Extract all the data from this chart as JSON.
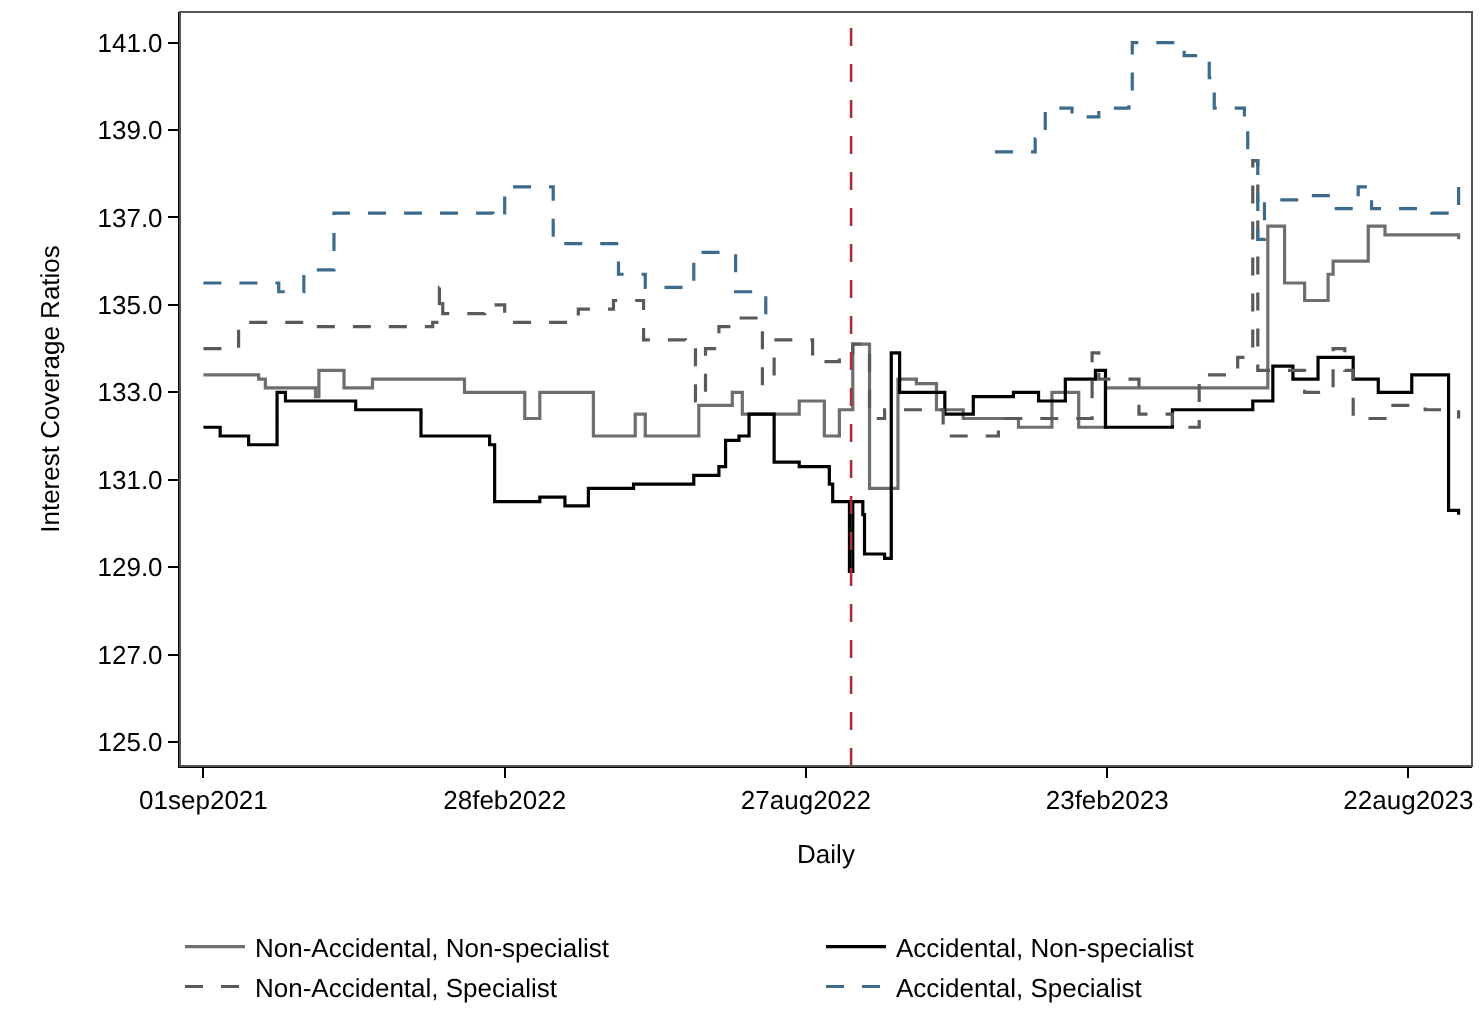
{
  "chart_data": {
    "type": "step",
    "xlabel": "Daily",
    "ylabel": "Interest Coverage Ratios",
    "xlim": [
      "2021-08-18",
      "2023-09-29"
    ],
    "xticks": [
      {
        "value": "2021-09-01",
        "label": "01sep2021"
      },
      {
        "value": "2022-02-28",
        "label": "28feb2022"
      },
      {
        "value": "2022-08-27",
        "label": "27aug2022"
      },
      {
        "value": "2023-02-23",
        "label": "23feb2023"
      },
      {
        "value": "2023-08-22",
        "label": "22aug2023"
      }
    ],
    "ylim": [
      124.45,
      141.7
    ],
    "yticks": [
      {
        "value": 125,
        "label": "125.0"
      },
      {
        "value": 127,
        "label": "127.0"
      },
      {
        "value": 129,
        "label": "129.0"
      },
      {
        "value": 131,
        "label": "131.0"
      },
      {
        "value": 133,
        "label": "133.0"
      },
      {
        "value": 135,
        "label": "135.0"
      },
      {
        "value": 137,
        "label": "137.0"
      },
      {
        "value": 139,
        "label": "139.0"
      },
      {
        "value": 141,
        "label": "141.0"
      }
    ],
    "legend": "bottom",
    "ref_lines": [
      {
        "axis": "x",
        "value": "2022-09-23",
        "color": "#a8323a",
        "line_style": "dashed"
      }
    ],
    "series": [
      {
        "name": "Non-Accidental, Non-specialist",
        "color": "#6e6e6e",
        "line_style": "solid",
        "x": [
          "2021-09-01",
          "2021-10-04",
          "2021-10-08",
          "2021-11-03",
          "2021-11-07",
          "2021-11-09",
          "2021-11-21",
          "2021-11-24",
          "2021-12-06",
          "2021-12-11",
          "2022-01-16",
          "2022-02-04",
          "2022-02-19",
          "2022-03-12",
          "2022-03-21",
          "2022-04-17",
          "2022-04-22",
          "2022-05-16",
          "2022-05-17",
          "2022-05-23",
          "2022-06-16",
          "2022-06-24",
          "2022-07-14",
          "2022-07-20",
          "2022-08-23",
          "2022-09-04",
          "2022-09-07",
          "2022-09-16",
          "2022-09-24",
          "2022-09-29",
          "2022-10-04",
          "2022-10-19",
          "2022-10-21",
          "2022-11-01",
          "2022-11-13",
          "2022-11-29",
          "2023-01-01",
          "2023-01-21",
          "2023-02-06",
          "2023-02-22",
          "2023-05-28",
          "2023-05-30",
          "2023-06-05",
          "2023-06-09",
          "2023-06-21",
          "2023-07-05",
          "2023-07-08",
          "2023-07-27",
          "2023-07-29",
          "2023-08-08",
          "2023-09-21"
        ],
        "values": [
          133.4,
          133.3,
          133.1,
          133.1,
          132.9,
          133.5,
          133.5,
          133.1,
          133.1,
          133.3,
          133.3,
          133.0,
          133.0,
          132.4,
          133.0,
          133.0,
          132.0,
          132.0,
          132.5,
          132.0,
          132.0,
          132.7,
          133.0,
          132.5,
          132.8,
          132.8,
          132.0,
          132.6,
          134.1,
          134.1,
          130.8,
          130.8,
          133.3,
          133.2,
          132.6,
          132.4,
          132.2,
          133.0,
          132.2,
          133.1,
          133.1,
          136.8,
          136.8,
          135.5,
          135.1,
          135.7,
          136.0,
          136.0,
          136.8,
          136.6,
          136.5
        ]
      },
      {
        "name": "Accidental, Non-specialist",
        "color": "#000000",
        "line_style": "solid",
        "x": [
          "2021-09-01",
          "2021-09-11",
          "2021-09-28",
          "2021-10-13",
          "2021-10-15",
          "2021-10-20",
          "2021-11-30",
          "2021-12-01",
          "2022-01-08",
          "2022-01-09",
          "2022-02-19",
          "2022-02-22",
          "2022-03-21",
          "2022-04-05",
          "2022-04-19",
          "2022-05-16",
          "2022-06-16",
          "2022-06-21",
          "2022-07-06",
          "2022-07-10",
          "2022-07-18",
          "2022-07-24",
          "2022-07-28",
          "2022-08-08",
          "2022-08-23",
          "2022-09-10",
          "2022-09-12",
          "2022-09-19",
          "2022-09-22",
          "2022-09-24",
          "2022-09-30",
          "2022-10-01",
          "2022-10-13",
          "2022-10-17",
          "2022-10-19",
          "2022-10-22",
          "2022-11-02",
          "2022-11-18",
          "2022-12-05",
          "2022-12-29",
          "2023-01-13",
          "2023-01-29",
          "2023-02-16",
          "2023-02-22",
          "2023-03-14",
          "2023-04-03",
          "2023-05-21",
          "2023-06-02",
          "2023-06-14",
          "2023-06-29",
          "2023-07-20",
          "2023-08-04",
          "2023-08-24",
          "2023-09-09",
          "2023-09-13",
          "2023-09-15",
          "2023-09-21"
        ],
        "values": [
          132.2,
          132.0,
          131.8,
          131.8,
          133.0,
          132.8,
          132.8,
          132.6,
          132.6,
          132.0,
          131.8,
          130.5,
          130.6,
          130.4,
          130.8,
          130.9,
          130.9,
          131.1,
          131.3,
          131.9,
          132.0,
          132.5,
          132.5,
          131.4,
          131.3,
          130.9,
          130.5,
          130.5,
          128.9,
          130.5,
          130.2,
          129.3,
          129.2,
          133.9,
          133.9,
          133.0,
          133.0,
          132.5,
          132.9,
          133.0,
          132.8,
          133.3,
          133.5,
          132.2,
          132.2,
          132.6,
          132.8,
          133.6,
          133.3,
          133.8,
          133.3,
          133.0,
          133.4,
          133.4,
          133.4,
          130.3,
          130.2
        ]
      },
      {
        "name": "Non-Accidental, Specialist",
        "color": "#5a5a5a",
        "line_style": "dashed",
        "x": [
          "2021-09-01",
          "2021-09-19",
          "2021-09-22",
          "2021-10-28",
          "2021-11-06",
          "2022-01-16",
          "2022-01-20",
          "2022-01-22",
          "2022-02-13",
          "2022-02-16",
          "2022-02-28",
          "2022-04-13",
          "2022-05-04",
          "2022-05-19",
          "2022-05-22",
          "2022-06-16",
          "2022-06-22",
          "2022-06-28",
          "2022-07-06",
          "2022-07-14",
          "2022-07-26",
          "2022-08-01",
          "2022-08-07",
          "2022-08-08",
          "2022-08-31",
          "2022-09-16",
          "2022-09-19",
          "2022-09-24",
          "2022-10-04",
          "2022-10-13",
          "2022-11-17",
          "2022-12-20",
          "2023-02-14",
          "2023-02-18",
          "2023-03-14",
          "2023-04-03",
          "2023-04-19",
          "2023-05-12",
          "2023-05-21",
          "2023-05-24",
          "2023-06-21",
          "2023-07-08",
          "2023-07-15",
          "2023-07-20",
          "2023-08-08",
          "2023-09-01",
          "2023-09-21"
        ],
        "values": [
          134.0,
          134.0,
          134.6,
          134.6,
          134.5,
          134.6,
          135.4,
          134.8,
          134.8,
          135.0,
          134.6,
          134.9,
          135.1,
          135.1,
          134.2,
          134.1,
          132.8,
          134.0,
          134.5,
          134.7,
          134.7,
          133.2,
          133.2,
          134.2,
          133.7,
          133.8,
          133.9,
          134.1,
          132.4,
          132.6,
          132.0,
          132.4,
          133.9,
          133.3,
          132.5,
          132.2,
          133.4,
          133.8,
          138.3,
          133.5,
          133.0,
          134.0,
          133.5,
          132.4,
          132.7,
          132.6,
          132.4
        ]
      },
      {
        "name": "Accidental, Specialist",
        "color": "#3d6b8c",
        "line_style": "dashed",
        "x": [
          "2021-09-01",
          "2021-10-16",
          "2021-10-31",
          "2021-11-18",
          "2022-02-21",
          "2022-02-28",
          "2022-03-29",
          "2022-05-07",
          "2022-05-23",
          "2022-06-21",
          "2022-07-16",
          "2022-08-03",
          "2022-08-10",
          "2022-12-18",
          "2022-12-29",
          "2023-01-11",
          "2023-01-17",
          "2023-02-02",
          "2023-02-18",
          "2023-03-08",
          "2023-03-10",
          "2023-03-29",
          "2023-04-10",
          "2023-04-25",
          "2023-04-28",
          "2023-05-16",
          "2023-05-18",
          "2023-05-24",
          "2023-05-28",
          "2023-06-21",
          "2023-07-08",
          "2023-07-23",
          "2023-07-31",
          "2023-09-05",
          "2023-09-15",
          "2023-09-21"
        ],
        "values": [
          135.5,
          135.3,
          135.8,
          137.1,
          137.0,
          137.7,
          136.4,
          135.7,
          135.4,
          136.2,
          135.3,
          134.6,
          null,
          138.5,
          138.5,
          138.8,
          139.5,
          139.3,
          139.5,
          139.7,
          141.0,
          141.0,
          140.7,
          140.2,
          139.5,
          139.2,
          138.3,
          136.5,
          137.4,
          137.5,
          137.2,
          137.7,
          137.2,
          137.1,
          137.1,
          137.7
        ]
      }
    ]
  }
}
